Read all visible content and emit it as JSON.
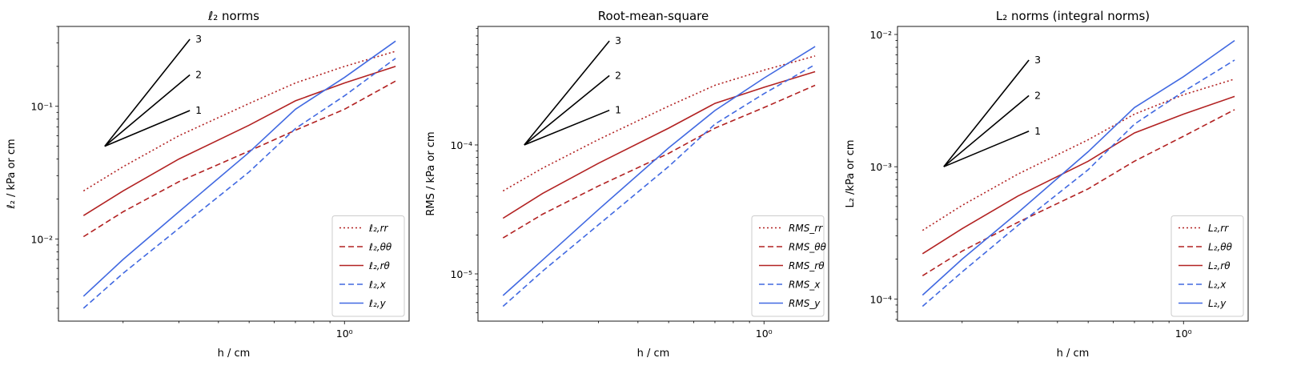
{
  "chart_data": [
    {
      "type": "line",
      "scale": "log-log",
      "title": "ℓ₂ norms",
      "xlabel": "h / cm",
      "ylabel": "ℓ₂ / kPa or cm",
      "xlim": [
        0.125,
        1.6
      ],
      "ylim": [
        0.0024,
        0.4
      ],
      "yticks": [
        {
          "v": 0.01,
          "label": "10⁻²"
        },
        {
          "v": 0.1,
          "label": "10⁻¹"
        }
      ],
      "xticks": [
        {
          "v": 1.0,
          "label": "10⁰"
        }
      ],
      "x": [
        0.15,
        0.2,
        0.3,
        0.5,
        0.7,
        1.0,
        1.45
      ],
      "series": [
        {
          "name": "ℓ₂,rr",
          "color": "#b22222",
          "dash": "dotted",
          "values": [
            0.023,
            0.035,
            0.06,
            0.105,
            0.15,
            0.2,
            0.26
          ]
        },
        {
          "name": "ℓ₂,θθ",
          "color": "#b22222",
          "dash": "dashed",
          "values": [
            0.0104,
            0.016,
            0.027,
            0.046,
            0.066,
            0.095,
            0.155
          ]
        },
        {
          "name": "ℓ₂,rθ",
          "color": "#b22222",
          "dash": "solid",
          "values": [
            0.015,
            0.023,
            0.04,
            0.072,
            0.11,
            0.15,
            0.2
          ]
        },
        {
          "name": "ℓ₂,x",
          "color": "#4169e1",
          "dash": "dashed",
          "values": [
            0.003,
            0.0055,
            0.012,
            0.032,
            0.068,
            0.12,
            0.23
          ]
        },
        {
          "name": "ℓ₂,y",
          "color": "#4169e1",
          "dash": "solid",
          "values": [
            0.0037,
            0.007,
            0.016,
            0.045,
            0.095,
            0.165,
            0.31
          ]
        }
      ],
      "triangle": {
        "x0": 0.175,
        "y0": 0.05,
        "x1": 0.325,
        "labels": [
          "1",
          "2",
          "3"
        ],
        "slopes": [
          1,
          2,
          3
        ],
        "color": "#000000"
      },
      "legend_position": "lower-right"
    },
    {
      "type": "line",
      "scale": "log-log",
      "title": "Root-mean-square",
      "xlabel": "h / cm",
      "ylabel": "RMS / kPa or cm",
      "xlim": [
        0.125,
        1.6
      ],
      "ylim": [
        4.3e-06,
        0.00083
      ],
      "yticks": [
        {
          "v": 1e-05,
          "label": "10⁻⁵"
        },
        {
          "v": 0.0001,
          "label": "10⁻⁴"
        }
      ],
      "xticks": [
        {
          "v": 1.0,
          "label": "10⁰"
        }
      ],
      "x": [
        0.15,
        0.2,
        0.3,
        0.5,
        0.7,
        1.0,
        1.45
      ],
      "series": [
        {
          "name": "RMS_rr",
          "color": "#b22222",
          "dash": "dotted",
          "values": [
            4.4e-05,
            6.6e-05,
            0.00011,
            0.0002,
            0.00029,
            0.00038,
            0.00049
          ]
        },
        {
          "name": "RMS_θθ",
          "color": "#b22222",
          "dash": "dashed",
          "values": [
            1.9e-05,
            2.9e-05,
            4.8e-05,
            8.6e-05,
            0.000135,
            0.000195,
            0.00029
          ]
        },
        {
          "name": "RMS_rθ",
          "color": "#b22222",
          "dash": "solid",
          "values": [
            2.7e-05,
            4.2e-05,
            7.2e-05,
            0.000135,
            0.00021,
            0.00028,
            0.00037
          ]
        },
        {
          "name": "RMS_x",
          "color": "#4169e1",
          "dash": "dashed",
          "values": [
            5.6e-06,
            1.05e-05,
            2.4e-05,
            6.8e-05,
            0.000145,
            0.00025,
            0.00042
          ]
        },
        {
          "name": "RMS_y",
          "color": "#4169e1",
          "dash": "solid",
          "values": [
            6.8e-06,
            1.28e-05,
            3.15e-05,
            9.5e-05,
            0.000185,
            0.00033,
            0.00058
          ]
        }
      ],
      "triangle": {
        "x0": 0.175,
        "y0": 0.0001,
        "x1": 0.325,
        "labels": [
          "1",
          "2",
          "3"
        ],
        "slopes": [
          1,
          2,
          3
        ],
        "color": "#000000"
      },
      "legend_position": "lower-right"
    },
    {
      "type": "line",
      "scale": "log-log",
      "title": "L₂ norms (integral norms)",
      "xlabel": "h / cm",
      "ylabel": "L₂ /kPa or cm",
      "xlim": [
        0.125,
        1.6
      ],
      "ylim": [
        6.8e-05,
        0.0115
      ],
      "yticks": [
        {
          "v": 0.0001,
          "label": "10⁻⁴"
        },
        {
          "v": 0.001,
          "label": "10⁻³"
        },
        {
          "v": 0.01,
          "label": "10⁻²"
        }
      ],
      "xticks": [
        {
          "v": 1.0,
          "label": "10⁰"
        }
      ],
      "x": [
        0.15,
        0.2,
        0.3,
        0.5,
        0.7,
        1.0,
        1.45
      ],
      "series": [
        {
          "name": "L₂,rr",
          "color": "#b22222",
          "dash": "dotted",
          "values": [
            0.00033,
            0.00051,
            0.00088,
            0.0016,
            0.0025,
            0.0035,
            0.0046
          ]
        },
        {
          "name": "L₂,θθ",
          "color": "#b22222",
          "dash": "dashed",
          "values": [
            0.00015,
            0.00023,
            0.00038,
            0.00068,
            0.0011,
            0.0017,
            0.0027
          ]
        },
        {
          "name": "L₂,rθ",
          "color": "#b22222",
          "dash": "solid",
          "values": [
            0.00022,
            0.00034,
            0.0006,
            0.0011,
            0.0018,
            0.0025,
            0.0034
          ]
        },
        {
          "name": "L₂,x",
          "color": "#4169e1",
          "dash": "dashed",
          "values": [
            8.8e-05,
            0.00016,
            0.00036,
            0.00095,
            0.0021,
            0.0037,
            0.0064
          ]
        },
        {
          "name": "L₂,y",
          "color": "#4169e1",
          "dash": "solid",
          "values": [
            0.000107,
            0.0002,
            0.00045,
            0.0013,
            0.0028,
            0.0048,
            0.009
          ]
        }
      ],
      "triangle": {
        "x0": 0.175,
        "y0": 0.001,
        "x1": 0.325,
        "labels": [
          "1",
          "2",
          "3"
        ],
        "slopes": [
          1,
          2,
          3
        ],
        "color": "#000000"
      },
      "legend_position": "lower-right"
    }
  ]
}
